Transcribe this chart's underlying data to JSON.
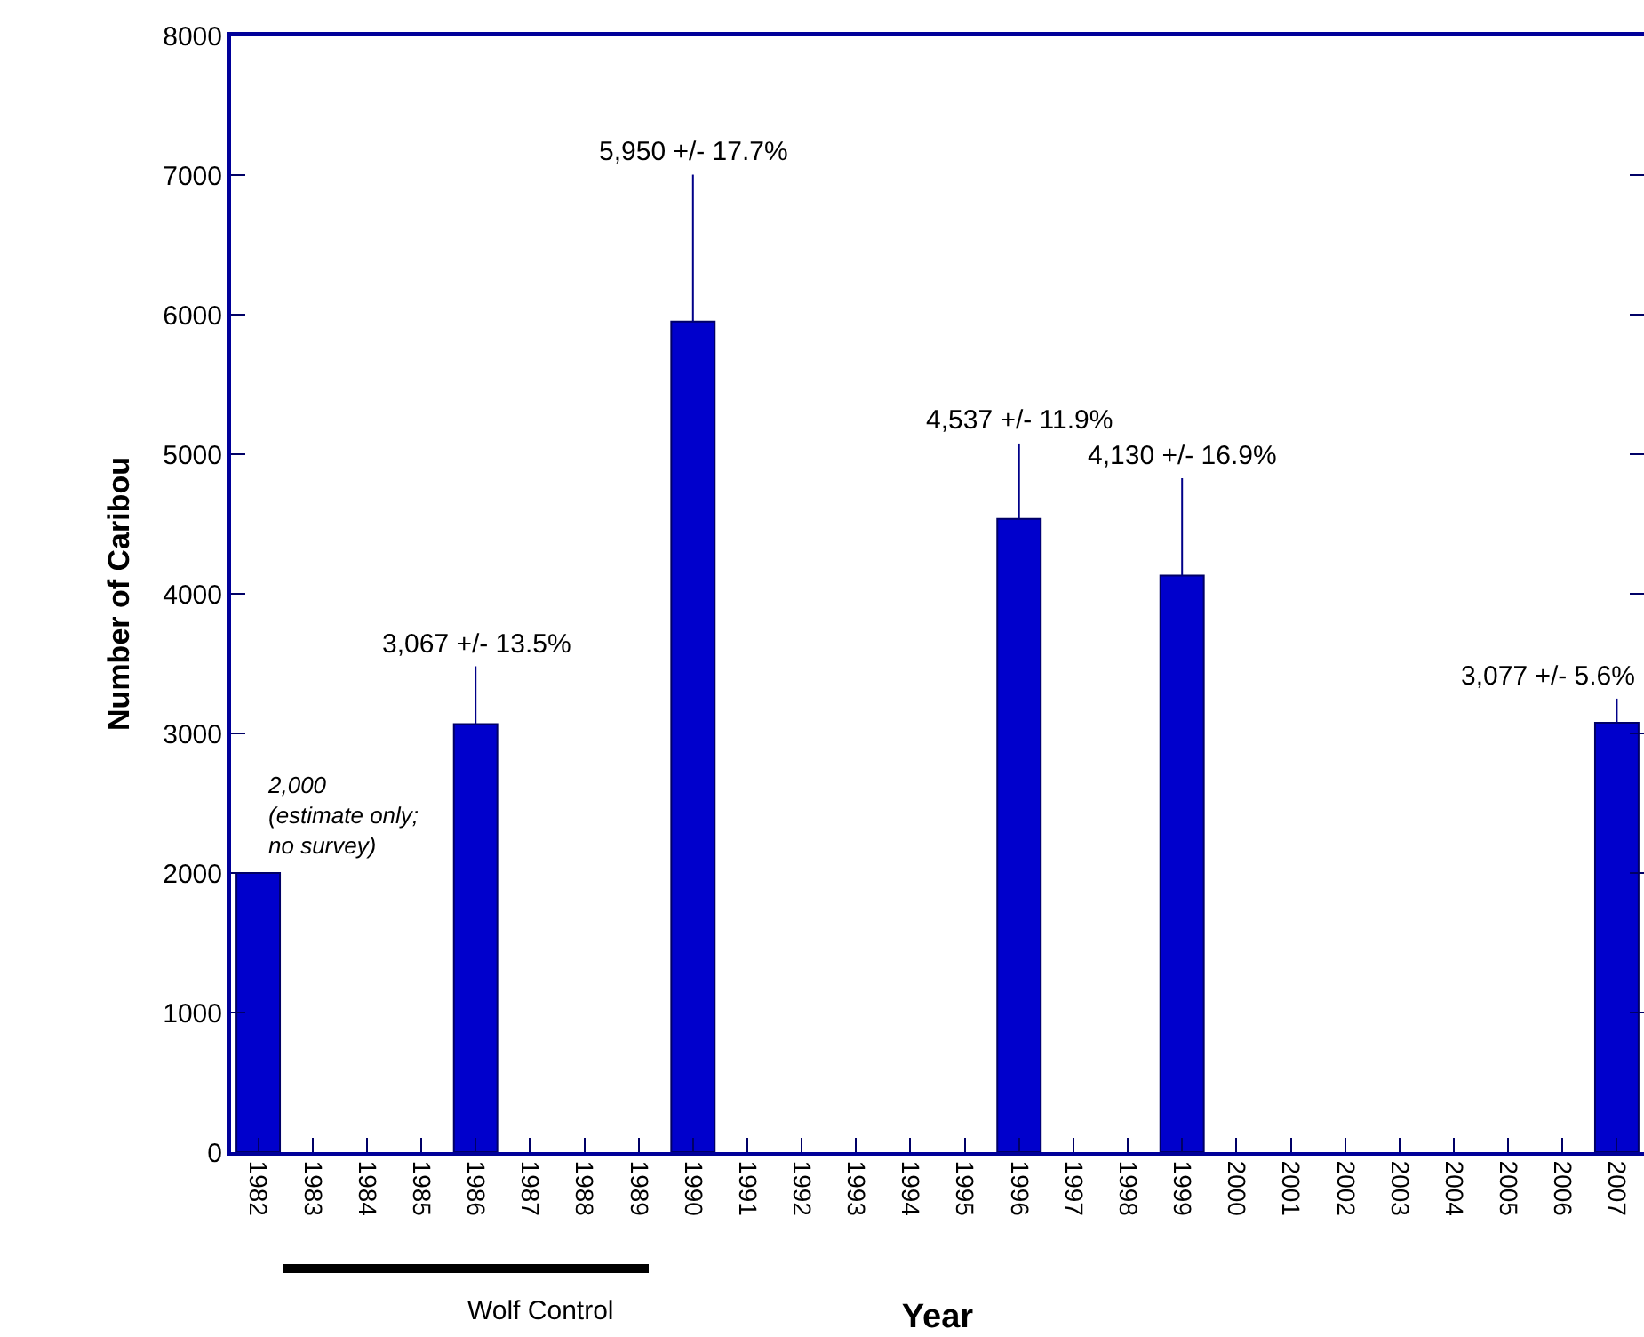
{
  "chart_data": {
    "type": "bar",
    "categories": [
      "1982",
      "1983",
      "1984",
      "1985",
      "1986",
      "1987",
      "1988",
      "1989",
      "1990",
      "1991",
      "1992",
      "1993",
      "1994",
      "1995",
      "1996",
      "1997",
      "1998",
      "1999",
      "2000",
      "2001",
      "2002",
      "2003",
      "2004",
      "2005",
      "2006",
      "2007"
    ],
    "values": [
      2000,
      null,
      null,
      null,
      3067,
      null,
      null,
      null,
      5950,
      null,
      null,
      null,
      null,
      null,
      4537,
      null,
      null,
      4130,
      null,
      null,
      null,
      null,
      null,
      null,
      null,
      3077
    ],
    "errors": [
      null,
      null,
      null,
      null,
      [
        3067,
        3481
      ],
      null,
      null,
      null,
      [
        5950,
        7003
      ],
      null,
      null,
      null,
      null,
      null,
      [
        4537,
        5077
      ],
      null,
      null,
      [
        4130,
        4828
      ],
      null,
      null,
      null,
      null,
      null,
      null,
      null,
      [
        3077,
        3249
      ]
    ],
    "color": "#0000cc",
    "annotations": [
      {
        "text": "2,000\n(estimate only;\nno survey)",
        "x": "1982",
        "y": 2000
      },
      {
        "text": "3,067 +/- 13.5%",
        "x": "1986",
        "y": 3481
      },
      {
        "text": "5,950 +/- 17.7%",
        "x": "1990",
        "y": 7003
      },
      {
        "text": "4,537 +/- 11.9%",
        "x": "1996",
        "y": 5077
      },
      {
        "text": "4,130 +/- 16.9%",
        "x": "1999",
        "y": 4828
      },
      {
        "text": "3,077 +/- 5.6%",
        "x": "2007",
        "y": 3249
      },
      "Wolf Control"
    ],
    "xlabel": "Year",
    "ylabel": "Number of Caribou",
    "ylim": [
      0,
      8000
    ],
    "yticks": [
      0,
      1000,
      2000,
      3000,
      4000,
      5000,
      6000,
      7000,
      8000
    ],
    "grid": false,
    "legend": false
  }
}
